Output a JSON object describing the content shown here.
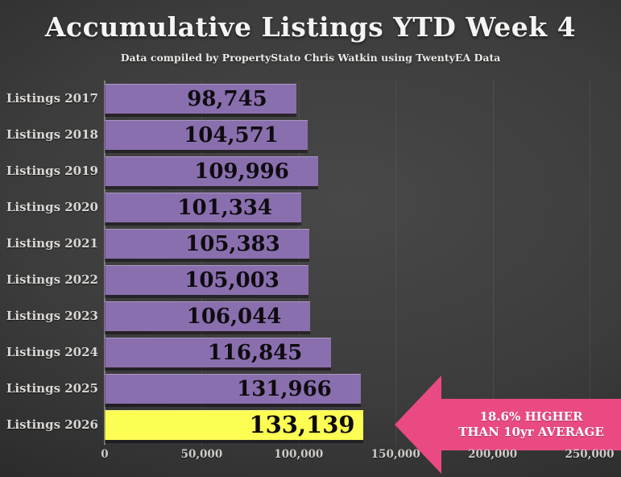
{
  "slide": {
    "title": "Accumulative Listings YTD Week 4",
    "subtitle": "Data compiled by PropertyStato Chris Watkin using TwentyEA Data"
  },
  "chart_data": {
    "type": "bar",
    "orientation": "horizontal",
    "title": "Accumulative Listings YTD Week 4",
    "categories": [
      "Listings 2017",
      "Listings 2018",
      "Listings 2019",
      "Listings 2020",
      "Listings 2021",
      "Listings 2022",
      "Listings 2023",
      "Listings 2024",
      "Listings 2025",
      "Listings 2026"
    ],
    "values": [
      98745,
      104571,
      109996,
      101334,
      105383,
      105003,
      106044,
      116845,
      131966,
      133139
    ],
    "value_labels": [
      "98,745",
      "104,571",
      "109,996",
      "101,334",
      "105,383",
      "105,003",
      "106,044",
      "116,845",
      "131,966",
      "133,139"
    ],
    "xlim": [
      0,
      250000
    ],
    "x_ticks": [
      {
        "value": 0,
        "label": "0"
      },
      {
        "value": 50000,
        "label": "50,000"
      },
      {
        "value": 100000,
        "label": "100,000"
      },
      {
        "value": 150000,
        "label": "150,000"
      },
      {
        "value": 200000,
        "label": "200,000"
      },
      {
        "value": 250000,
        "label": "250,000"
      }
    ],
    "grid": true,
    "legend": false,
    "highlight_index": 9,
    "colors": {
      "bar": "#8a6fae",
      "highlight_bar": "#fdfe54",
      "value_text": "#0e0b10",
      "category_text": "#dbd8d4",
      "tick_text": "#cfccc8",
      "gridline": "rgba(255,255,255,0.08)",
      "axis_line": "#7e7e7e"
    }
  },
  "annotation": {
    "line1": "18.6% HIGHER",
    "line2": "THAN 10yr AVERAGE",
    "color": "#e94a84",
    "text_color": "#ffffff"
  }
}
